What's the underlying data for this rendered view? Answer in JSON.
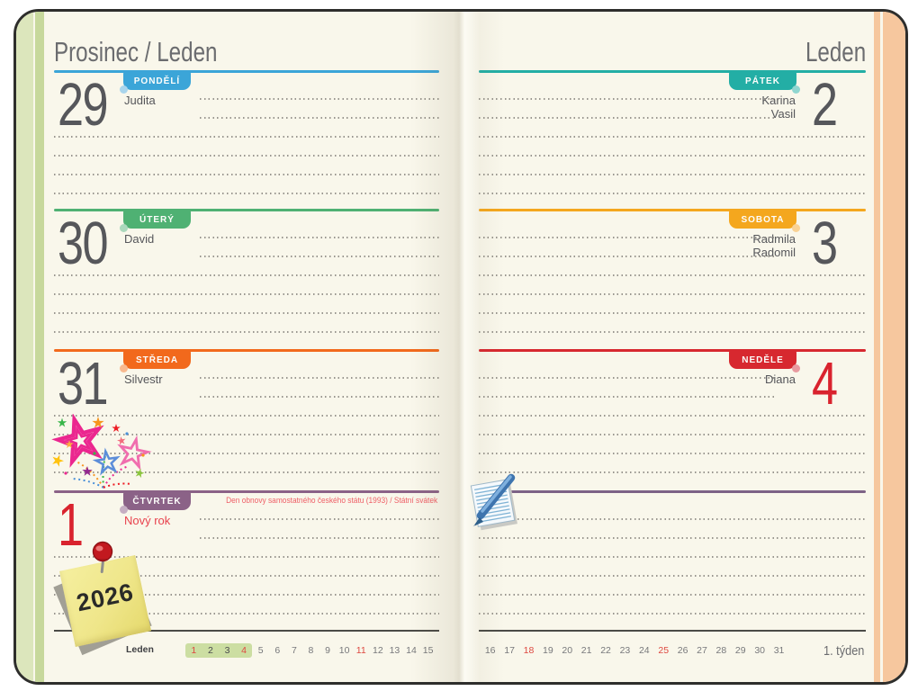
{
  "left_page": {
    "title": "Prosinec / Leden",
    "days": [
      {
        "date": "29",
        "weekday": "PONDĚLÍ",
        "names": [
          "Judita"
        ],
        "accent_color": "#3BA5D8"
      },
      {
        "date": "30",
        "weekday": "ÚTERÝ",
        "names": [
          "David"
        ],
        "accent_color": "#4FB173"
      },
      {
        "date": "31",
        "weekday": "STŘEDA",
        "names": [
          "Silvestr"
        ],
        "accent_color": "#F2691C"
      },
      {
        "date": "1",
        "weekday": "ČTVRTEK",
        "names": [
          "Nový rok"
        ],
        "accent_color": "#8B6287",
        "date_color": "#D9232E",
        "holiday_note": "Den obnovy samostatného českého státu (1993) / Státní svátek"
      }
    ],
    "mini_calendar": {
      "month_label": "Leden",
      "numbers": [
        "1",
        "2",
        "3",
        "4",
        "5",
        "6",
        "7",
        "8",
        "9",
        "10",
        "11",
        "12",
        "13",
        "14",
        "15"
      ],
      "red_numbers": [
        "1",
        "4",
        "11"
      ],
      "dark_numbers": [
        "2",
        "3"
      ],
      "highlighted_numbers": [
        "1",
        "2",
        "3",
        "4"
      ],
      "highlight_color": "#CCDEA2"
    }
  },
  "right_page": {
    "title": "Leden",
    "days": [
      {
        "date": "2",
        "weekday": "PÁTEK",
        "names": [
          "Karina",
          "Vasil"
        ],
        "accent_color": "#23AEA5"
      },
      {
        "date": "3",
        "weekday": "SOBOTA",
        "names": [
          "Radmila",
          "Radomil"
        ],
        "accent_color": "#F4A71E"
      },
      {
        "date": "4",
        "weekday": "NEDĚLE",
        "names": [
          "Diana"
        ],
        "accent_color": "#D7282F",
        "date_color": "#D9232E"
      }
    ],
    "notes_divider_color": "#7D6386",
    "week_label": "1. týden",
    "mini_calendar": {
      "numbers": [
        "16",
        "17",
        "18",
        "19",
        "20",
        "21",
        "22",
        "23",
        "24",
        "25",
        "26",
        "27",
        "28",
        "29",
        "30",
        "31"
      ],
      "red_numbers": [
        "18",
        "25"
      ]
    }
  },
  "decorations": {
    "sticky_note_text": "2026",
    "stars_sticker": "confetti-stars",
    "notepad_icon": "notepad-with-pen",
    "pushpin_icon": "red-pushpin"
  },
  "colors": {
    "page_background": "#F9F7EB",
    "book_border": "#2E2E2C",
    "left_edge_band": "#DCE6BC",
    "left_edge_stripe": "#C7D89C",
    "right_edge_band": "#F6C79E",
    "holiday_text": "#EE5F67",
    "weekend_red": "#D9232E",
    "text_gray": "#55565A",
    "title_gray": "#6B6C6F"
  }
}
